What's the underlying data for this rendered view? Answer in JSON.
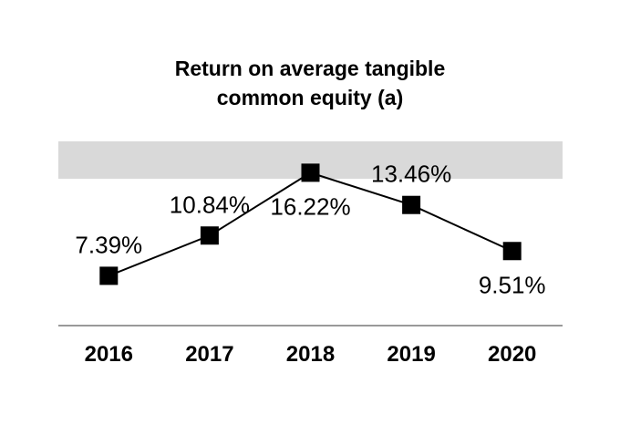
{
  "chart_data": {
    "type": "line",
    "title": "Return on average tangible common equity (a)",
    "title_lines": [
      "Return on average tangible",
      "common equity (a)"
    ],
    "categories": [
      "2016",
      "2017",
      "2018",
      "2019",
      "2020"
    ],
    "series": [
      {
        "name": "Return on average tangible common equity (%)",
        "values": [
          7.39,
          10.84,
          16.22,
          13.46,
          9.51
        ]
      }
    ],
    "data_labels": [
      "7.39%",
      "10.84%",
      "16.22%",
      "13.46%",
      "9.51%"
    ],
    "label_placement": [
      "above",
      "above",
      "below",
      "above",
      "below"
    ],
    "marker_style": "square",
    "legend": "none",
    "grid": "off",
    "highlight_band_value_range": [
      16,
      19
    ],
    "colors": {
      "line": "#000000",
      "marker": "#000000",
      "text": "#000000",
      "highlight_band": "#d9d9d9",
      "axis_line": "#999999",
      "background": "#ffffff"
    }
  }
}
